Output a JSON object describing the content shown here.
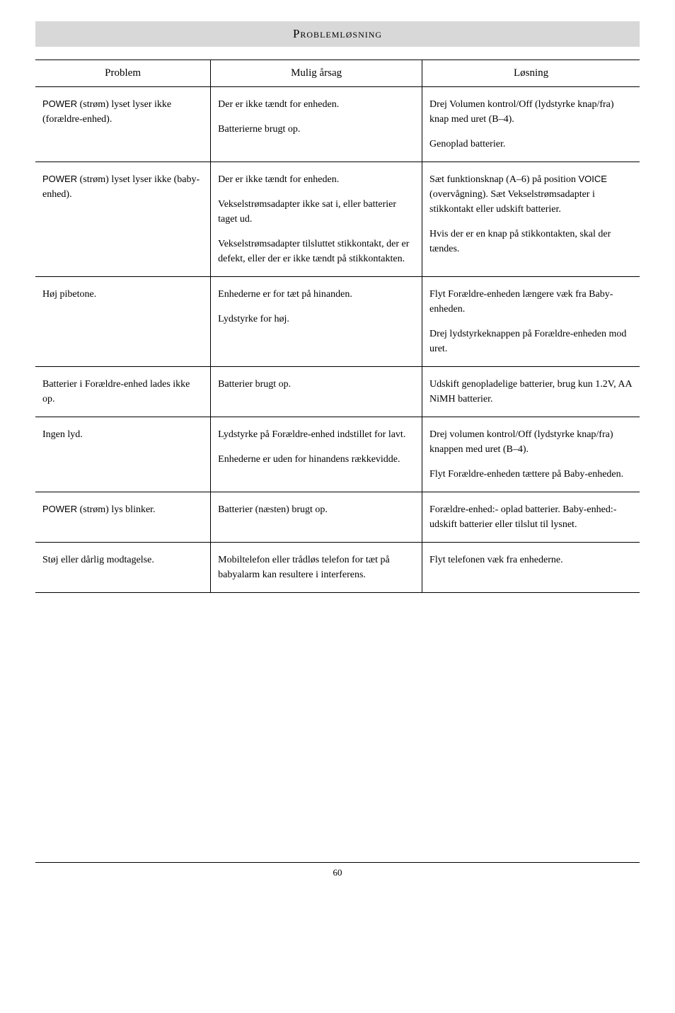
{
  "title": "Problemløsning",
  "headers": {
    "problem": "Problem",
    "cause": "Mulig årsag",
    "solution": "Løsning"
  },
  "rows": [
    {
      "problem_html": "<span class='sans'>POWER</span> (strøm) lyset lyser ikke (forældre-enhed).",
      "cause_html": "<div class='para'>Der er ikke tændt for enheden.</div><div class='para'>Batterierne brugt op.</div>",
      "solution_html": "<div class='para'>Drej Volumen kontrol/Off (lydstyrke knap/fra) knap med uret (B–4).</div><div class='para'>Genoplad batterier.</div>"
    },
    {
      "problem_html": "<span class='sans'>POWER</span> (strøm) lyset lyser ikke (baby-enhed).",
      "cause_html": "<div class='para'>Der er ikke tændt for enheden.</div><div class='para'>Vekselstrømsadapter ikke sat i, eller batterier taget ud.</div><div class='para'>Vekselstrømsadapter tilsluttet stikkontakt, der er defekt, eller der er ikke tændt på stikkontakten.</div>",
      "solution_html": "<div class='para'>Sæt funktionsknap (A–6) på position <span class='sans'>VOICE</span> (overvågning). Sæt Vekselstrømsadapter i stikkontakt eller udskift batterier.</div><div class='para'>Hvis der er en knap på stikkontakten, skal der tændes.</div>"
    },
    {
      "problem_html": "Høj pibetone.",
      "cause_html": "<div class='para'>Enhederne er for tæt på hinanden.</div><div class='para'>Lydstyrke for høj.</div>",
      "solution_html": "<div class='para'>Flyt Forældre-enheden længere væk fra Baby-enheden.</div><div class='para'>Drej lydstyrkeknappen på Forældre-enheden mod uret.</div>"
    },
    {
      "problem_html": "Batterier i Forældre-enhed lades ikke op.",
      "cause_html": "Batterier brugt op.",
      "solution_html": "Udskift genopladelige batterier, brug kun 1.2V, AA NiMH batterier."
    },
    {
      "problem_html": "Ingen lyd.",
      "cause_html": "<div class='para'>Lydstyrke på Forældre-enhed indstillet for lavt.</div><div class='para'>Enhederne er uden for hinandens rækkevidde.</div>",
      "solution_html": "<div class='para'>Drej volumen kontrol/Off (lydstyrke knap/fra) knappen med uret (B–4).</div><div class='para'>Flyt Forældre-enheden tættere på Baby-enheden.</div>"
    },
    {
      "problem_html": "<span class='sans'>POWER</span> (strøm) lys blinker.",
      "cause_html": "Batterier (næsten) brugt op.",
      "solution_html": "Forældre-enhed:- oplad batterier. Baby-enhed:- udskift batterier eller tilslut til lysnet."
    },
    {
      "problem_html": "Støj eller dårlig modtagelse.",
      "cause_html": "Mobiltelefon eller trådløs telefon for tæt på babyalarm kan resultere i interferens.",
      "solution_html": "Flyt telefonen væk fra enhederne."
    }
  ],
  "page_number": "60"
}
